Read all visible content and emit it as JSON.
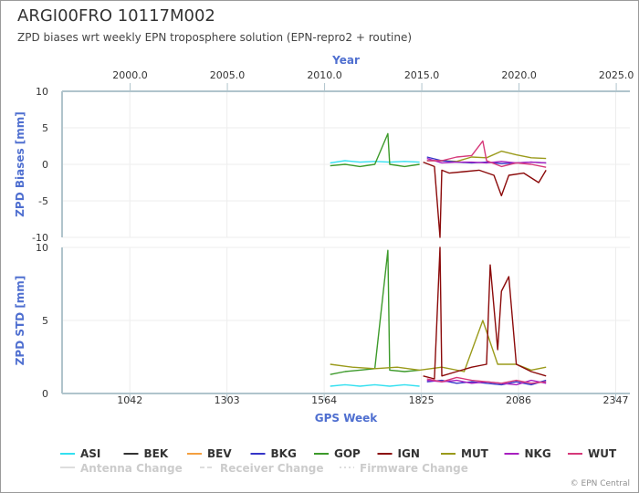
{
  "header": {
    "title": "ARGI00FRO 10117M002",
    "subtitle": "ZPD biases wrt weekly EPN troposphere solution (EPN-repro2 + routine)"
  },
  "credit": "© EPN Central",
  "colors": {
    "axis_title": "#4f6fd0",
    "axis_line": "#b0c4cc"
  },
  "chart_data": {
    "type": "line",
    "x_top": {
      "label": "Year",
      "ticks": [
        "2000.0",
        "2005.0",
        "2010.0",
        "2015.0",
        "2020.0",
        "2025.0"
      ],
      "tick_values": [
        2000,
        2005,
        2010,
        2015,
        2020,
        2025
      ],
      "range": [
        1996.5,
        2025.7
      ]
    },
    "x_bottom": {
      "label": "GPS Week",
      "ticks": [
        "1042",
        "1303",
        "1564",
        "1825",
        "2086",
        "2347"
      ],
      "tick_values": [
        1042,
        1303,
        1564,
        1825,
        2086,
        2347
      ],
      "range": [
        860,
        2385
      ]
    },
    "panels": [
      {
        "ylabel": "ZPD Biases [mm]",
        "ylim": [
          -10,
          10
        ],
        "yticks": [
          "10",
          "5",
          "0",
          "-5",
          "-10"
        ],
        "ytick_values": [
          10,
          5,
          0,
          -5,
          -10
        ],
        "series": [
          {
            "name": "ASI",
            "color": "#33e0f0",
            "x": [
              1580,
              1620,
              1660,
              1700,
              1740,
              1780,
              1820
            ],
            "y": [
              0.2,
              0.5,
              0.3,
              0.4,
              0.3,
              0.4,
              0.3
            ]
          },
          {
            "name": "GOP",
            "color": "#3c9a2a",
            "x": [
              1580,
              1620,
              1660,
              1700,
              1735,
              1740,
              1780,
              1820
            ],
            "y": [
              -0.2,
              0.0,
              -0.3,
              0.0,
              4.2,
              0.0,
              -0.3,
              0.0
            ]
          },
          {
            "name": "MUT",
            "color": "#9a9a1a",
            "x": [
              1840,
              1880,
              1920,
              1960,
              2000,
              2040,
              2080,
              2120,
              2160
            ],
            "y": [
              0.5,
              0.5,
              0.4,
              1.0,
              0.9,
              1.8,
              1.3,
              0.9,
              0.8
            ]
          },
          {
            "name": "BKG",
            "color": "#3535c8",
            "x": [
              1840,
              1880,
              1920,
              1960,
              2000,
              2040,
              2080,
              2120,
              2160
            ],
            "y": [
              1.0,
              0.5,
              0.3,
              0.2,
              0.3,
              0.1,
              0.2,
              0.3,
              0.2
            ]
          },
          {
            "name": "NKG",
            "color": "#a820c0",
            "x": [
              1840,
              1880,
              1920,
              1960,
              2000,
              2040,
              2080,
              2120,
              2160
            ],
            "y": [
              0.8,
              0.2,
              0.3,
              0.3,
              0.2,
              0.4,
              0.2,
              0.3,
              0.2
            ]
          },
          {
            "name": "IGN",
            "color": "#8b0a0a",
            "x": [
              1830,
              1860,
              1875,
              1880,
              1900,
              1940,
              1980,
              2020,
              2040,
              2060,
              2100,
              2140,
              2160
            ],
            "y": [
              0.3,
              -0.3,
              -10.0,
              -0.8,
              -1.2,
              -1.0,
              -0.8,
              -1.5,
              -4.3,
              -1.5,
              -1.2,
              -2.5,
              -0.8
            ]
          },
          {
            "name": "WUT",
            "color": "#d6397a",
            "x": [
              1840,
              1880,
              1920,
              1960,
              1990,
              2000,
              2040,
              2080,
              2120,
              2160
            ],
            "y": [
              0.5,
              0.5,
              1.0,
              1.2,
              3.2,
              0.5,
              -0.3,
              0.2,
              0.0,
              -0.4
            ]
          }
        ]
      },
      {
        "ylabel": "ZPD STD [mm]",
        "ylim": [
          0,
          10
        ],
        "yticks": [
          "10",
          "5",
          "0"
        ],
        "ytick_values": [
          10,
          5,
          0
        ],
        "series": [
          {
            "name": "ASI",
            "color": "#33e0f0",
            "x": [
              1580,
              1620,
              1660,
              1700,
              1740,
              1780,
              1820
            ],
            "y": [
              0.5,
              0.6,
              0.5,
              0.6,
              0.5,
              0.6,
              0.5
            ]
          },
          {
            "name": "GOP",
            "color": "#3c9a2a",
            "x": [
              1580,
              1620,
              1660,
              1700,
              1735,
              1740,
              1780,
              1820
            ],
            "y": [
              1.3,
              1.5,
              1.6,
              1.7,
              9.8,
              1.6,
              1.5,
              1.6
            ]
          },
          {
            "name": "MUT",
            "color": "#9a9a1a",
            "x": [
              1580,
              1640,
              1700,
              1760,
              1820,
              1880,
              1940,
              1990,
              2030,
              2080,
              2120,
              2160
            ],
            "y": [
              2.0,
              1.8,
              1.7,
              1.8,
              1.6,
              1.8,
              1.5,
              5.0,
              2.0,
              2.0,
              1.6,
              1.8
            ]
          },
          {
            "name": "BKG",
            "color": "#3535c8",
            "x": [
              1840,
              1880,
              1920,
              1960,
              2000,
              2040,
              2080,
              2120,
              2160
            ],
            "y": [
              0.8,
              0.9,
              0.7,
              0.8,
              0.7,
              0.6,
              0.8,
              0.6,
              0.9
            ]
          },
          {
            "name": "NKG",
            "color": "#a820c0",
            "x": [
              1840,
              1880,
              1920,
              1960,
              2000,
              2040,
              2080,
              2120,
              2160
            ],
            "y": [
              0.9,
              0.8,
              0.9,
              0.7,
              0.8,
              0.7,
              0.6,
              0.9,
              0.7
            ]
          },
          {
            "name": "IGN",
            "color": "#8b0a0a",
            "x": [
              1830,
              1860,
              1875,
              1880,
              1920,
              1960,
              2000,
              2010,
              2030,
              2040,
              2060,
              2080,
              2120,
              2160
            ],
            "y": [
              1.2,
              1.0,
              10.0,
              1.2,
              1.5,
              1.8,
              2.0,
              8.8,
              3.0,
              7.0,
              8.0,
              2.0,
              1.5,
              1.2
            ]
          },
          {
            "name": "WUT",
            "color": "#d6397a",
            "x": [
              1840,
              1880,
              1920,
              1960,
              2000,
              2040,
              2080,
              2120,
              2160
            ],
            "y": [
              1.0,
              0.8,
              1.1,
              0.9,
              0.8,
              0.7,
              0.9,
              0.7,
              0.8
            ]
          }
        ]
      }
    ],
    "legend": {
      "placement": "bottom",
      "items": [
        {
          "name": "ASI",
          "color": "#33e0f0"
        },
        {
          "name": "BEK",
          "color": "#333333"
        },
        {
          "name": "BEV",
          "color": "#f4a040"
        },
        {
          "name": "BKG",
          "color": "#3535c8"
        },
        {
          "name": "GOP",
          "color": "#3c9a2a"
        },
        {
          "name": "IGN",
          "color": "#8b0a0a"
        },
        {
          "name": "MUT",
          "color": "#9a9a1a"
        },
        {
          "name": "NKG",
          "color": "#a820c0"
        },
        {
          "name": "WUT",
          "color": "#d6397a"
        }
      ],
      "change_items": [
        {
          "name": "Antenna Change",
          "style": "solid"
        },
        {
          "name": "Receiver Change",
          "style": "dashed"
        },
        {
          "name": "Firmware Change",
          "style": "dotted"
        }
      ]
    }
  }
}
